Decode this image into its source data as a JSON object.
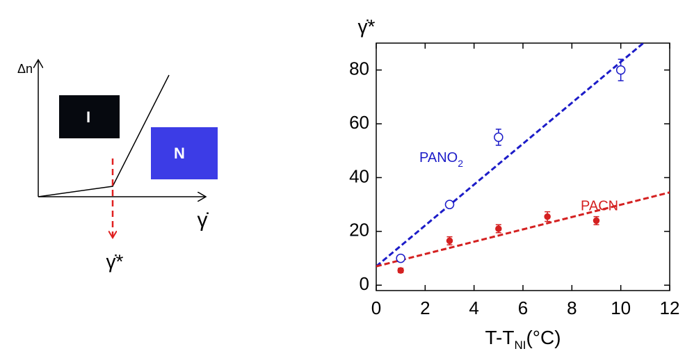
{
  "diagram": {
    "ylabel": "Δn",
    "xlabel": "γ̇",
    "critical": "γ̇*",
    "isotropic": "I",
    "nematic": "N"
  },
  "chart_data": {
    "type": "scatter",
    "ylabel": "γ̇*",
    "xlabel": {
      "text": "T-T",
      "sub": "NI",
      "suffix": "(°C)"
    },
    "xlim": [
      0,
      12
    ],
    "xticks": [
      0,
      2,
      4,
      6,
      8,
      10,
      12
    ],
    "ylim": [
      -2,
      90
    ],
    "yticks": [
      0,
      20,
      40,
      60,
      80
    ],
    "series": [
      {
        "name": {
          "text": "PANO",
          "sub": "2"
        },
        "color": "#1c1cc8",
        "marker": "open",
        "x": [
          1,
          3,
          5,
          10
        ],
        "values": [
          10,
          30,
          55,
          80
        ],
        "errors": [
          1,
          1,
          3,
          4
        ]
      },
      {
        "name": {
          "text": "PACN"
        },
        "color": "#d42020",
        "marker": "filled",
        "x": [
          1,
          3,
          5,
          7,
          9
        ],
        "values": [
          5.5,
          16.5,
          21,
          25.5,
          24
        ],
        "errors": [
          0.8,
          1.5,
          1.5,
          1.8,
          1.5
        ]
      }
    ],
    "fits": [
      {
        "color": "#1c1cc8",
        "x": [
          0,
          12
        ],
        "values": [
          7,
          98.2
        ]
      },
      {
        "color": "#d42020",
        "x": [
          0,
          12
        ],
        "values": [
          7,
          34.5
        ]
      }
    ]
  }
}
